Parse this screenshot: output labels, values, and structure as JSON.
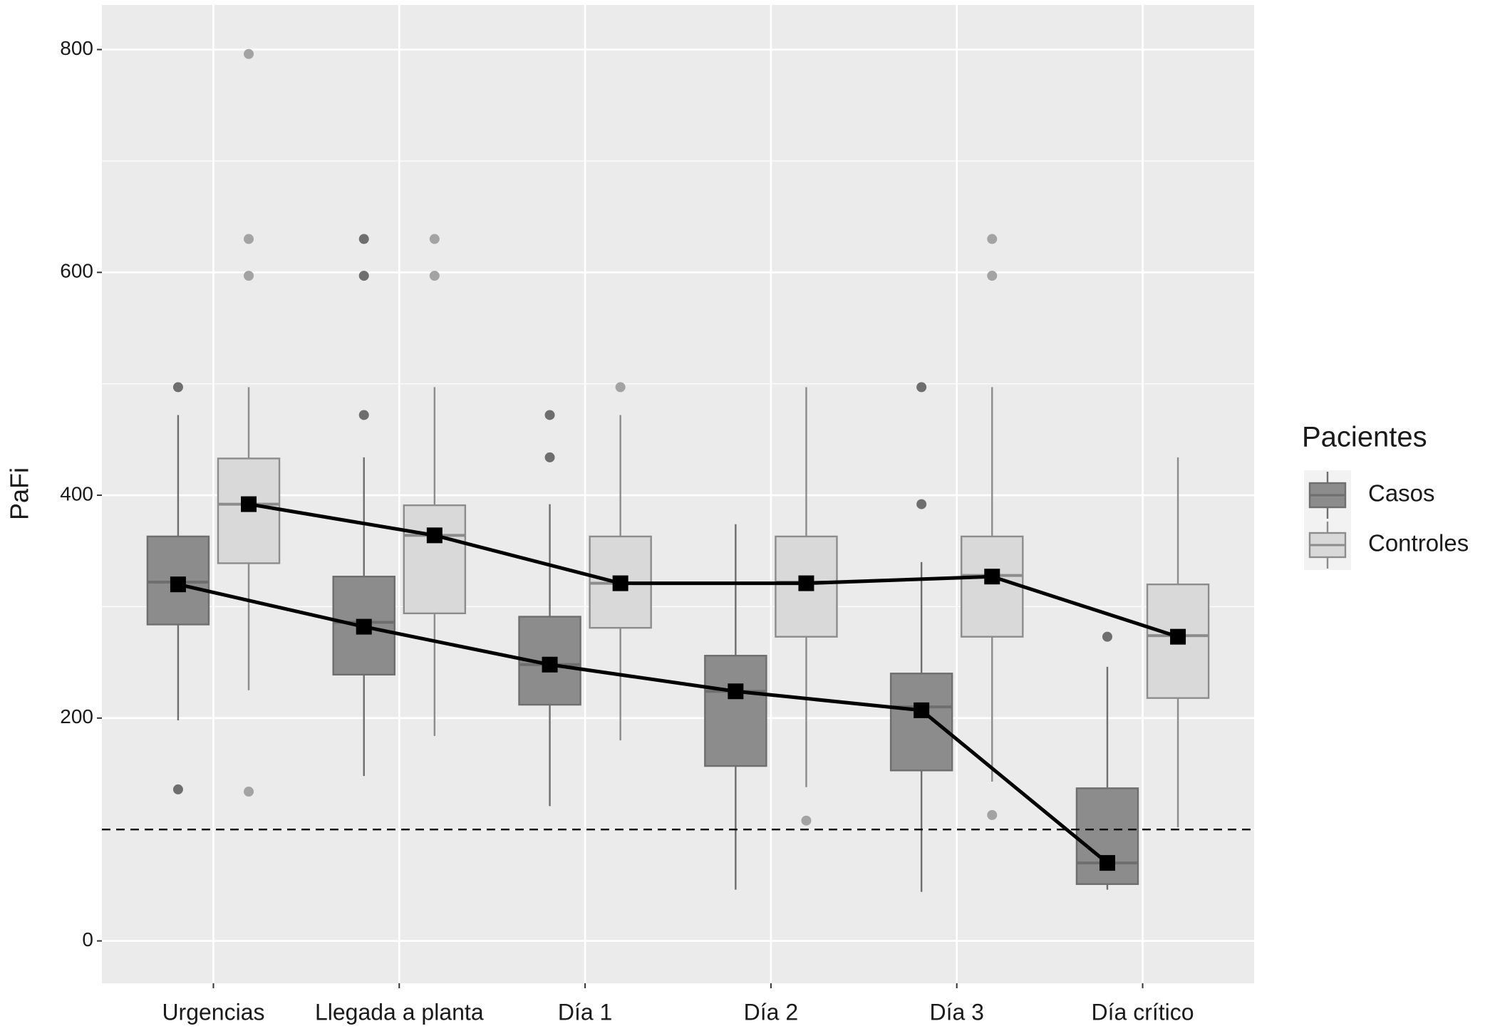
{
  "chart_data": {
    "type": "box",
    "y_label": "PaFi",
    "categories": [
      "Urgencias",
      "Llegada a planta",
      "Día 1",
      "Día 2",
      "Día 3",
      "Día crítico"
    ],
    "ylim": [
      -38,
      840
    ],
    "yticks": [
      0,
      200,
      400,
      600,
      800
    ],
    "y_minor_grid": [
      100,
      300,
      500,
      700
    ],
    "grid": true,
    "reference_line": 100,
    "legend_title": "Pacientes",
    "legend_position": "right",
    "series": [
      {
        "name": "Casos",
        "color": "#8c8c8c",
        "stroke": "#6e6e6e",
        "min": [
          198,
          148,
          121,
          46,
          44,
          46
        ],
        "q1": [
          284,
          239,
          212,
          157,
          153,
          51
        ],
        "median": [
          322,
          286,
          248,
          224,
          210,
          70
        ],
        "q3": [
          363,
          327,
          291,
          256,
          240,
          137
        ],
        "max": [
          472,
          434,
          392,
          374,
          340,
          246
        ],
        "mean": [
          320,
          282,
          248,
          224,
          207,
          70
        ],
        "outliers": [
          [
            497,
            136
          ],
          [
            630,
            597,
            472
          ],
          [
            472,
            434
          ],
          [],
          [
            497,
            392
          ],
          [
            273
          ]
        ]
      },
      {
        "name": "Controles",
        "color": "#d9d9d9",
        "stroke": "#8c8c8c",
        "min": [
          225,
          184,
          180,
          138,
          143,
          102
        ],
        "q1": [
          339,
          294,
          281,
          273,
          273,
          218
        ],
        "median": [
          392,
          364,
          321,
          322,
          328,
          274
        ],
        "q3": [
          433,
          391,
          363,
          363,
          363,
          320
        ],
        "max": [
          497,
          497,
          472,
          497,
          497,
          434
        ],
        "mean": [
          392,
          364,
          321,
          321,
          327,
          273
        ],
        "outliers": [
          [
            796,
            630,
            597,
            134
          ],
          [
            630,
            597
          ],
          [
            497
          ],
          [
            108
          ],
          [
            630,
            597,
            113
          ],
          []
        ]
      }
    ]
  }
}
